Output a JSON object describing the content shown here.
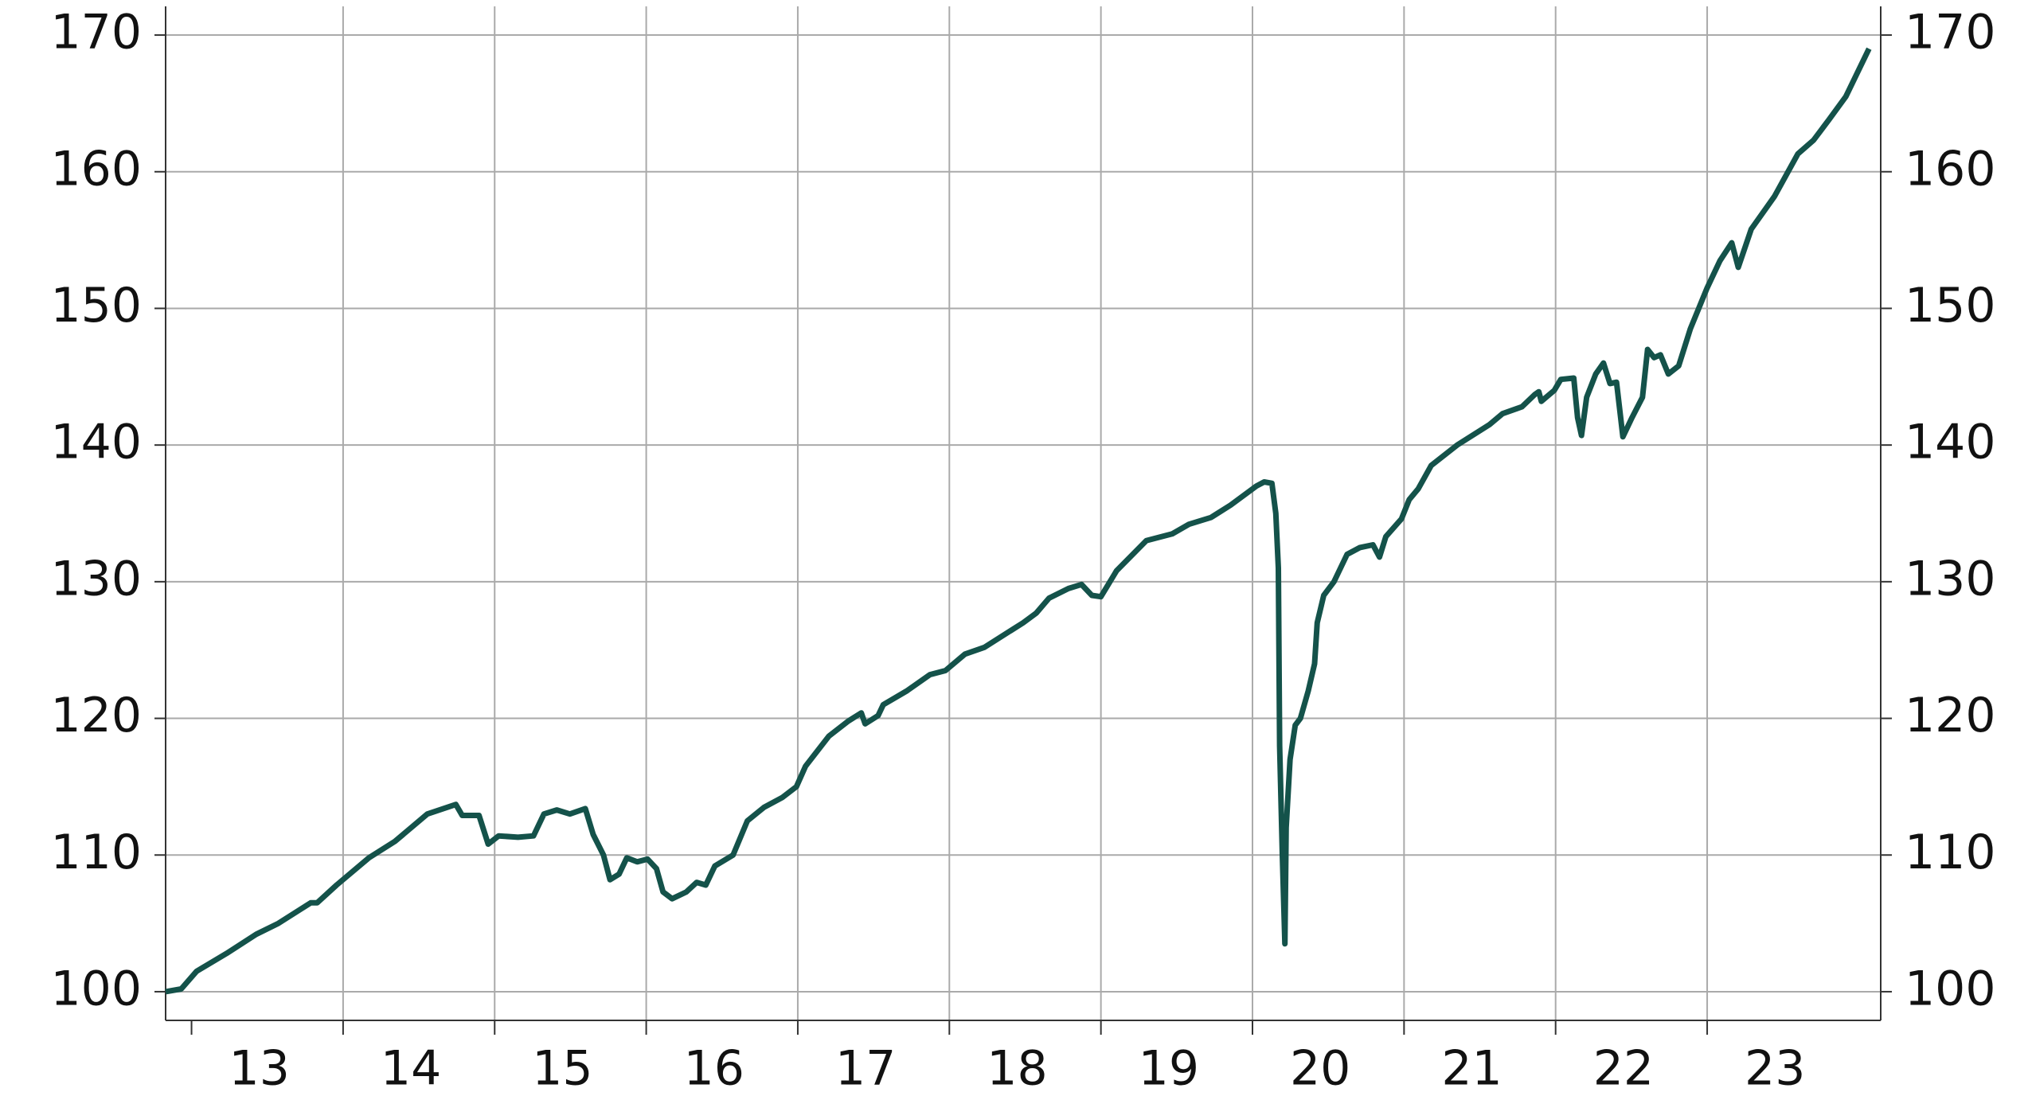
{
  "chart_data": {
    "type": "line",
    "x": [
      2012.829,
      2012.932,
      2013.034,
      2013.231,
      2013.427,
      2013.573,
      2013.786,
      2013.829,
      2013.957,
      2014.171,
      2014.342,
      2014.556,
      2014.744,
      2014.786,
      2014.897,
      2014.957,
      2015.026,
      2015.154,
      2015.256,
      2015.325,
      2015.41,
      2015.496,
      2015.598,
      2015.65,
      2015.718,
      2015.761,
      2015.821,
      2015.872,
      2015.94,
      2016.009,
      2016.068,
      2016.111,
      2016.171,
      2016.265,
      2016.333,
      2016.393,
      2016.453,
      2016.573,
      2016.667,
      2016.778,
      2016.897,
      2016.991,
      2017.051,
      2017.205,
      2017.333,
      2017.419,
      2017.444,
      2017.53,
      2017.564,
      2017.718,
      2017.872,
      2017.974,
      2018.103,
      2018.231,
      2018.487,
      2018.573,
      2018.658,
      2018.786,
      2018.872,
      2018.94,
      2019.0,
      2019.103,
      2019.299,
      2019.47,
      2019.581,
      2019.726,
      2019.855,
      2020.026,
      2020.077,
      2020.128,
      2020.154,
      2020.171,
      2020.179,
      2020.197,
      2020.214,
      2020.222,
      2020.248,
      2020.282,
      2020.316,
      2020.368,
      2020.41,
      2020.427,
      2020.47,
      2020.538,
      2020.624,
      2020.709,
      2020.795,
      2020.838,
      2020.88,
      2020.983,
      2021.034,
      2021.094,
      2021.179,
      2021.35,
      2021.564,
      2021.65,
      2021.778,
      2021.863,
      2021.889,
      2021.906,
      2021.991,
      2022.034,
      2022.12,
      2022.145,
      2022.171,
      2022.205,
      2022.265,
      2022.316,
      2022.359,
      2022.402,
      2022.444,
      2022.504,
      2022.573,
      2022.607,
      2022.65,
      2022.692,
      2022.744,
      2022.812,
      2022.889,
      2023.0,
      2023.085,
      2023.162,
      2023.205,
      2023.291,
      2023.444,
      2023.598,
      2023.701,
      2023.803,
      2023.915,
      2024.068
    ],
    "series": [
      {
        "color": "#14524a",
        "values": [
          100,
          100.2,
          101.5,
          102.8,
          104.2,
          105,
          106.5,
          106.5,
          107.8,
          109.8,
          111,
          113,
          113.7,
          112.9,
          112.9,
          110.8,
          111.4,
          111.3,
          111.4,
          113,
          113.3,
          113,
          113.4,
          111.5,
          110,
          108.2,
          108.6,
          109.8,
          109.5,
          109.7,
          109,
          107.3,
          106.8,
          107.3,
          108,
          107.8,
          109.2,
          110,
          112.5,
          113.5,
          114.2,
          115,
          116.5,
          118.7,
          119.8,
          120.4,
          119.6,
          120.2,
          121,
          122,
          123.2,
          123.5,
          124.7,
          125.2,
          127,
          127.7,
          128.8,
          129.5,
          129.8,
          129,
          128.9,
          130.8,
          133,
          133.5,
          134.2,
          134.7,
          135.6,
          137,
          137.3,
          137.2,
          135,
          131,
          118,
          110,
          103.5,
          112,
          117,
          119.5,
          120,
          122,
          124,
          127,
          129,
          130,
          132,
          132.5,
          132.7,
          131.8,
          133.3,
          134.6,
          136,
          136.8,
          138.5,
          140,
          141.5,
          142.3,
          142.8,
          143.7,
          143.9,
          143.2,
          144,
          144.8,
          144.9,
          142,
          140.7,
          143.5,
          145.2,
          146,
          144.5,
          144.6,
          140.6,
          142,
          143.5,
          147,
          146.4,
          146.6,
          145.2,
          145.8,
          148.5,
          151.5,
          153.5,
          154.8,
          153,
          155.8,
          158.2,
          161.3,
          162.3,
          163.8,
          165.5,
          169
        ]
      }
    ],
    "xlim": [
      2012.829,
      2024.145
    ],
    "xticks": [
      {
        "value": 2013,
        "label": "13"
      },
      {
        "value": 2014,
        "label": "14"
      },
      {
        "value": 2015,
        "label": "15"
      },
      {
        "value": 2016,
        "label": "16"
      },
      {
        "value": 2017,
        "label": "17"
      },
      {
        "value": 2018,
        "label": "18"
      },
      {
        "value": 2019,
        "label": "19"
      },
      {
        "value": 2020,
        "label": "20"
      },
      {
        "value": 2021,
        "label": "21"
      },
      {
        "value": 2022,
        "label": "22"
      },
      {
        "value": 2023,
        "label": "23"
      }
    ],
    "ylim": [
      97.9,
      172.1
    ],
    "yticks": [
      100,
      110,
      120,
      130,
      140,
      150,
      160,
      170
    ],
    "grid": true
  }
}
